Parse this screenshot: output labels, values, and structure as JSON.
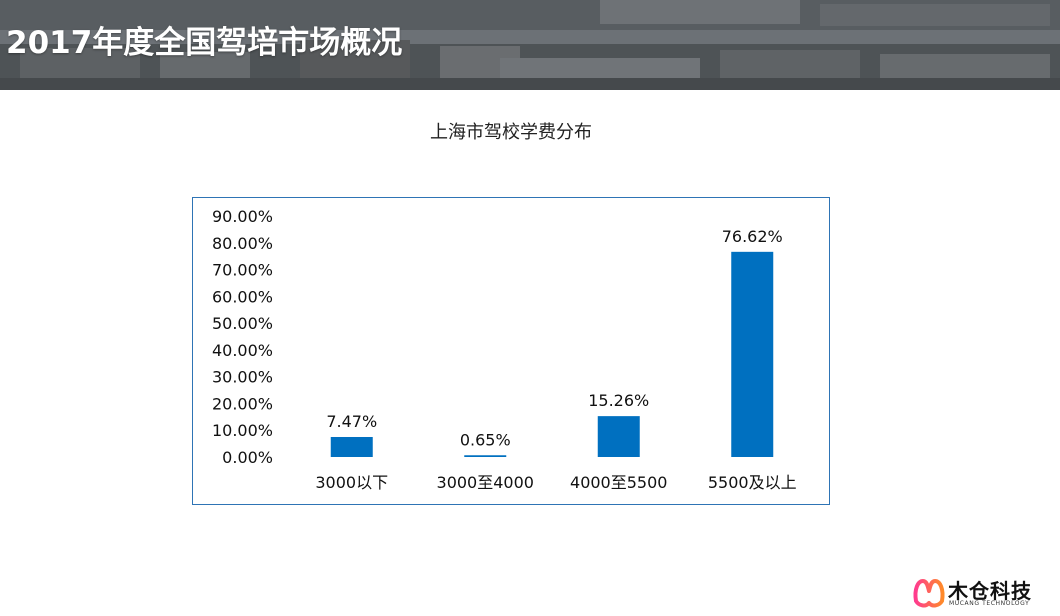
{
  "header": {
    "title": "2017年度全国驾培市场概况"
  },
  "chart_data": {
    "type": "bar",
    "title": "上海市驾校学费分布",
    "categories": [
      "3000以下",
      "3000至4000",
      "4000至5500",
      "5500及以上"
    ],
    "values": [
      7.47,
      0.65,
      15.26,
      76.62
    ],
    "value_labels": [
      "7.47%",
      "0.65%",
      "15.26%",
      "76.62%"
    ],
    "y_ticks": [
      "0.00%",
      "10.00%",
      "20.00%",
      "30.00%",
      "40.00%",
      "50.00%",
      "60.00%",
      "70.00%",
      "80.00%",
      "90.00%"
    ],
    "ylim": [
      0,
      90
    ],
    "xlabel": "",
    "ylabel": "",
    "grid": false,
    "bar_color": "#0070c0"
  },
  "logo": {
    "name_cn": "木仓科技",
    "name_en": "MUCANG TECHNOLOGY",
    "color_start": "#ff3c8e",
    "color_end": "#ff8a2a"
  }
}
